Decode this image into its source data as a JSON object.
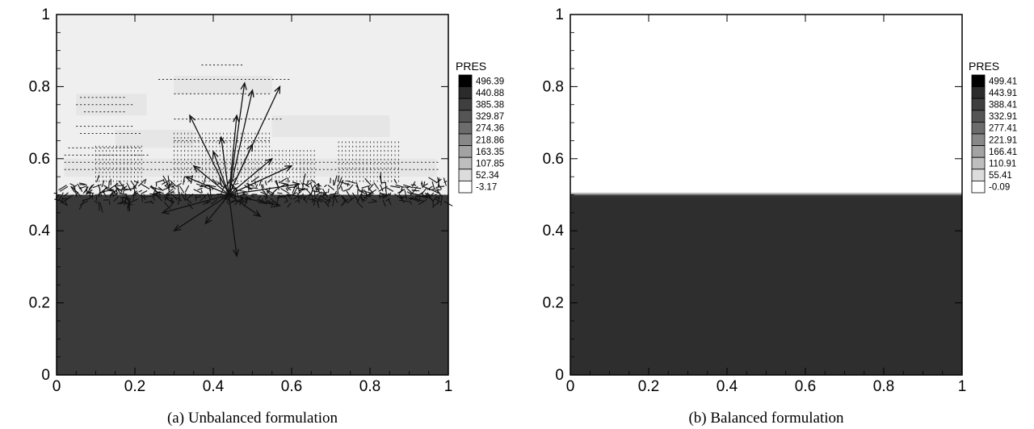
{
  "chart_data": [
    {
      "type": "heatmap",
      "caption": "(a) Unbalanced formulation",
      "xlim": [
        0,
        1
      ],
      "ylim": [
        0,
        1
      ],
      "xticks": [
        "0",
        "0.2",
        "0.4",
        "0.6",
        "0.8",
        "1"
      ],
      "yticks": [
        "0",
        "0.2",
        "0.4",
        "0.6",
        "0.8",
        "1"
      ],
      "interface_y": 0.5,
      "legend": {
        "title": "PRES",
        "levels": [
          "496.39",
          "440.88",
          "385.38",
          "329.87",
          "274.36",
          "218.86",
          "163.35",
          "107.85",
          "52.34",
          "-3.17"
        ]
      },
      "upper_fill_level": "-3.17",
      "lower_fill_level": "440.88",
      "velocity_vectors": true,
      "colors": {
        "upper": "#efefef",
        "lower": "#3a3a3a"
      }
    },
    {
      "type": "heatmap",
      "caption": "(b) Balanced formulation",
      "xlim": [
        0,
        1
      ],
      "ylim": [
        0,
        1
      ],
      "xticks": [
        "0",
        "0.2",
        "0.4",
        "0.6",
        "0.8",
        "1"
      ],
      "yticks": [
        "0",
        "0.2",
        "0.4",
        "0.6",
        "0.8",
        "1"
      ],
      "interface_y": 0.5,
      "legend": {
        "title": "PRES",
        "levels": [
          "499.41",
          "443.91",
          "388.41",
          "332.91",
          "277.41",
          "221.91",
          "166.41",
          "110.91",
          "55.41",
          "-0.09"
        ]
      },
      "upper_fill_level": "-0.09",
      "lower_fill_level": "443.91",
      "velocity_vectors": false,
      "colors": {
        "upper": "#ffffff",
        "lower": "#2e2e2e"
      }
    }
  ]
}
